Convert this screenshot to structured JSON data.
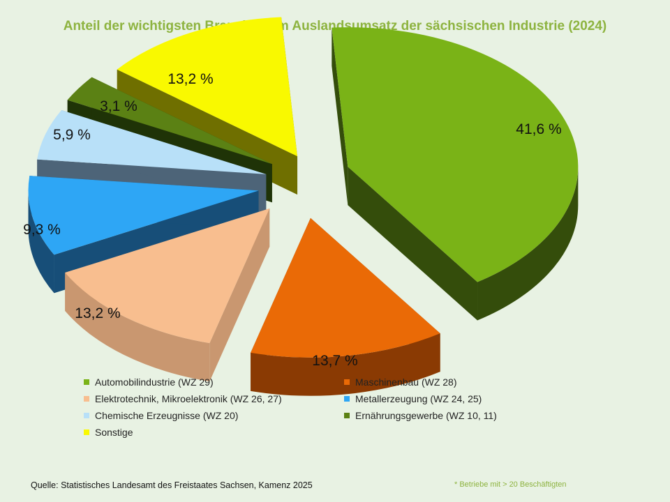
{
  "title": "Anteil der wichtigsten  Branchen am Auslandsumsatz der sächsischen Industrie (2024)",
  "source": "Quelle:  Statistisches Landesamt des Freistaates Sachsen, Kamenz 2025",
  "footnote": "* Betriebe mit >  20 Beschäftigten",
  "chart_data": {
    "type": "pie",
    "title": "Anteil der wichtigsten  Branchen am Auslandsumsatz der sächsischen Industrie (2024)",
    "style": "3d-exploded",
    "legend_position": "bottom",
    "slices": [
      {
        "label": "Automobilindustrie (WZ 29)",
        "value": 41.6,
        "display": "41,6 %",
        "color": "#7ab317",
        "side": "#344d0b"
      },
      {
        "label": "Maschinenbau (WZ 28)",
        "value": 13.7,
        "display": "13,7 %",
        "color": "#ea6a06",
        "side": "#8a3a03"
      },
      {
        "label": "Elektrotechnik, Mikroelektronik (WZ 26, 27)",
        "value": 13.2,
        "display": "13,2 %",
        "color": "#f8be8f",
        "side": "#c99770"
      },
      {
        "label": "Metallerzeugung (WZ 24, 25)",
        "value": 9.3,
        "display": "9,3 %",
        "color": "#2ea6f5",
        "side": "#174e78"
      },
      {
        "label": "Chemische Erzeugnisse (WZ 20)",
        "value": 5.9,
        "display": "5,9 %",
        "color": "#b8e0f8",
        "side": "#4d6478"
      },
      {
        "label": "Ernährungsgewerbe (WZ 10, 11)",
        "value": 3.1,
        "display": "3,1 %",
        "color": "#5b8114",
        "side": "#1f3307"
      },
      {
        "label": "Sonstige",
        "value": 13.2,
        "display": "13,2 %",
        "color": "#f9f900",
        "side": "#6f6f00"
      }
    ]
  }
}
